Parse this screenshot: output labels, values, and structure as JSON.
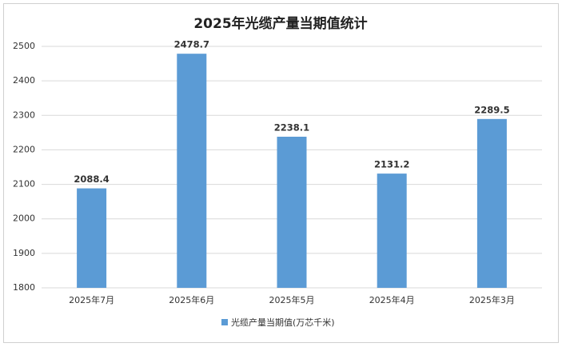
{
  "chart_data": {
    "type": "bar",
    "title": "2025年光缆产量当期值统计",
    "categories": [
      "2025年7月",
      "2025年6月",
      "2025年5月",
      "2025年4月",
      "2025年3月"
    ],
    "series": [
      {
        "name": "光缆产量当期值(万芯千米)",
        "color": "#5b9bd5",
        "values": [
          2088.4,
          2478.7,
          2238.1,
          2131.2,
          2289.5
        ]
      }
    ],
    "ylim": [
      1800,
      2500
    ],
    "yticks": [
      1800,
      1900,
      2000,
      2100,
      2200,
      2300,
      2400,
      2500
    ],
    "grid": true,
    "legend": "bottom"
  }
}
